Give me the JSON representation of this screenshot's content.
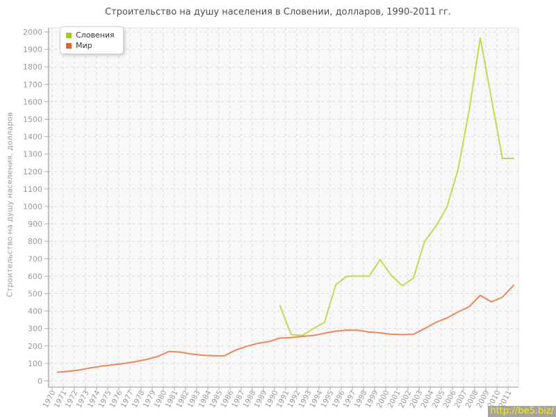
{
  "title": "Строительство на душу населения в Словении, долларов, 1990-2011 гг.",
  "watermark": {
    "text": "http://be5.biz/"
  },
  "chart_data": {
    "type": "line",
    "title": "Строительство на душу населения в Словении, долларов, 1990-2011 гг.",
    "ylabel": "Строительство на душу населения, долларов",
    "xlabel": "",
    "x": [
      1970,
      1971,
      1972,
      1973,
      1974,
      1975,
      1976,
      1977,
      1978,
      1979,
      1980,
      1981,
      1982,
      1983,
      1984,
      1985,
      1986,
      1987,
      1988,
      1989,
      1990,
      1991,
      1992,
      1993,
      1994,
      1995,
      1996,
      1997,
      1998,
      1999,
      2000,
      2001,
      2002,
      2003,
      2004,
      2005,
      2006,
      2007,
      2008,
      2009,
      2010,
      2011
    ],
    "series": [
      {
        "name": "Словения",
        "color": "#a6c622",
        "line_color": "#bcd53d",
        "values": [
          null,
          null,
          null,
          null,
          null,
          null,
          null,
          null,
          null,
          null,
          null,
          null,
          null,
          null,
          null,
          null,
          null,
          null,
          null,
          null,
          430,
          265,
          260,
          300,
          335,
          550,
          600,
          600,
          600,
          695,
          605,
          545,
          590,
          800,
          885,
          995,
          1210,
          1550,
          1965,
          1620,
          1275,
          1275
        ]
      },
      {
        "name": "Мир",
        "color": "#e0622b",
        "line_color": "#e8794c",
        "values": [
          50,
          55,
          63,
          75,
          85,
          92,
          100,
          110,
          123,
          140,
          168,
          165,
          154,
          147,
          144,
          144,
          176,
          198,
          215,
          225,
          245,
          248,
          255,
          260,
          273,
          285,
          291,
          290,
          280,
          275,
          267,
          265,
          267,
          300,
          335,
          360,
          395,
          425,
          490,
          453,
          480,
          548
        ]
      }
    ],
    "ylim": [
      0,
      2000
    ],
    "ytick_step": 100,
    "grid": true,
    "legend_position": "top-left"
  }
}
